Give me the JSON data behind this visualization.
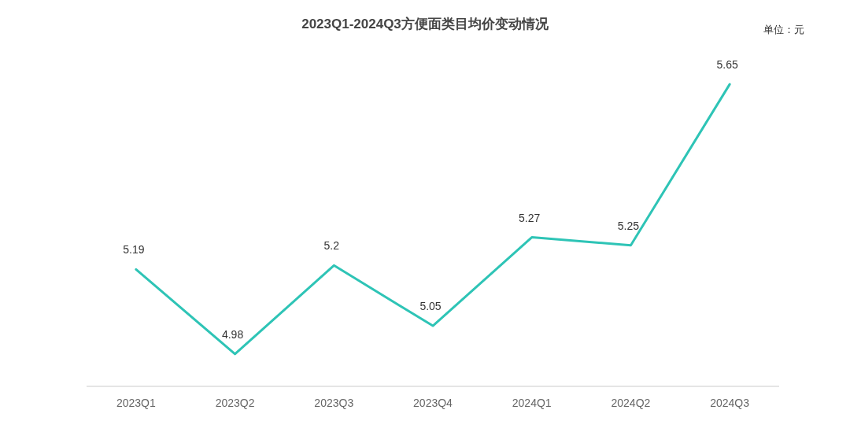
{
  "chart_data": {
    "type": "line",
    "title": "2023Q1-2024Q3方便面类目均价变动情况",
    "annotations": [
      "单位：元"
    ],
    "categories": [
      "2023Q1",
      "2023Q2",
      "2023Q3",
      "2023Q4",
      "2024Q1",
      "2024Q2",
      "2024Q3"
    ],
    "series": [
      {
        "color": "#2ec4b6",
        "values": [
          5.19,
          4.98,
          5.2,
          5.05,
          5.27,
          5.25,
          5.65
        ]
      }
    ],
    "data_labels": true,
    "marker": "none",
    "line_style": "solid"
  }
}
